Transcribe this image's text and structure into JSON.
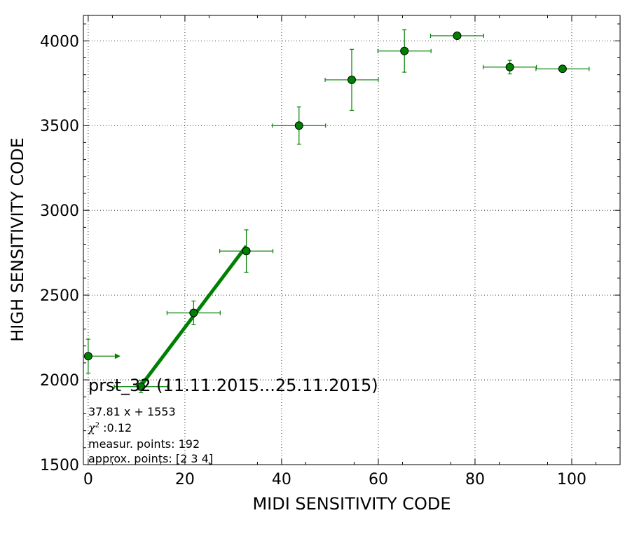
{
  "chart_data": {
    "type": "scatter",
    "title": "prst_32 (11.11.2015...25.11.2015)",
    "xlabel": "MIDI SENSITIVITY CODE",
    "ylabel": "HIGH SENSITIVITY CODE",
    "xlim": [
      -1,
      110
    ],
    "ylim": [
      1500,
      4150
    ],
    "xticks": [
      0,
      20,
      40,
      60,
      80,
      100
    ],
    "yticks": [
      1500,
      2000,
      2500,
      3000,
      3500,
      4000
    ],
    "grid": true,
    "color": "#008000",
    "points": [
      {
        "x": 0,
        "y": 2140,
        "xerr": 0,
        "yerr": 100,
        "arrow_right": true
      },
      {
        "x": 10.9,
        "y": 1960,
        "xerr": 5.5,
        "yerr": 35
      },
      {
        "x": 21.8,
        "y": 2395,
        "xerr": 5.5,
        "yerr": 70
      },
      {
        "x": 32.7,
        "y": 2760,
        "xerr": 5.5,
        "yerr": 125
      },
      {
        "x": 43.6,
        "y": 3500,
        "xerr": 5.5,
        "yerr": 110
      },
      {
        "x": 54.5,
        "y": 3770,
        "xerr": 5.5,
        "yerr": 180
      },
      {
        "x": 65.4,
        "y": 3940,
        "xerr": 5.5,
        "yerr": 125
      },
      {
        "x": 76.3,
        "y": 4030,
        "xerr": 5.5,
        "yerr": 10
      },
      {
        "x": 87.2,
        "y": 3845,
        "xerr": 5.5,
        "yerr": 40
      },
      {
        "x": 98.1,
        "y": 3835,
        "xerr": 5.5,
        "yerr": 10
      }
    ],
    "fit": {
      "slope": 37.81,
      "intercept": 1553,
      "x_range": [
        10.9,
        32.7
      ]
    },
    "annotations": {
      "equation": "37.81 x + 1553",
      "chi_symbol": "χ",
      "chi_exp": "2",
      "chi_value": " :0.12",
      "measur_points": "measur. points: 192",
      "approx_points": "approx. points: [2 3 4]"
    }
  }
}
